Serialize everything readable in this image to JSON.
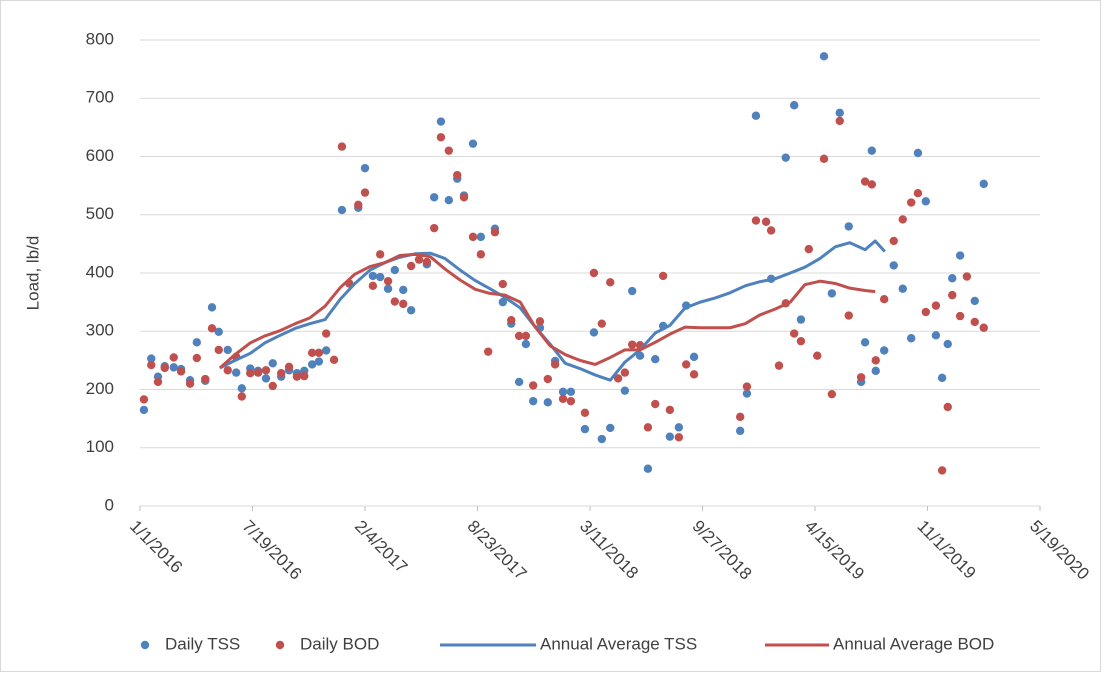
{
  "chart_data": {
    "type": "scatter",
    "y_label": "Load, lb/d",
    "ylim": [
      0,
      800
    ],
    "yticks": [
      0,
      100,
      200,
      300,
      400,
      500,
      600,
      700,
      800
    ],
    "xlim": [
      "1/1/2016",
      "5/19/2020"
    ],
    "xticks": [
      "1/1/2016",
      "7/19/2016",
      "2/4/2017",
      "8/23/2017",
      "3/11/2018",
      "9/27/2018",
      "4/15/2019",
      "11/1/2019",
      "5/19/2020"
    ],
    "grid": true,
    "legend": "bottom",
    "x": [
      "1/8/2016",
      "1/21/2016",
      "2/2/2016",
      "2/14/2016",
      "3/1/2016",
      "3/14/2016",
      "3/30/2016",
      "4/11/2016",
      "4/26/2016",
      "5/8/2016",
      "5/20/2016",
      "6/5/2016",
      "6/20/2016",
      "6/30/2016",
      "7/15/2016",
      "7/29/2016",
      "8/12/2016",
      "8/24/2016",
      "9/8/2016",
      "9/22/2016",
      "10/6/2016",
      "10/19/2016",
      "11/2/2016",
      "11/14/2016",
      "11/27/2016",
      "12/11/2016",
      "12/25/2016",
      "1/7/2017",
      "1/23/2017",
      "2/4/2017",
      "2/18/2017",
      "3/3/2017",
      "3/17/2017",
      "3/29/2017",
      "4/13/2017",
      "4/27/2017",
      "5/11/2017",
      "5/25/2017",
      "6/7/2017",
      "6/19/2017",
      "7/3/2017",
      "7/18/2017",
      "7/30/2017",
      "8/15/2017",
      "8/29/2017",
      "9/11/2017",
      "9/23/2017",
      "10/7/2017",
      "10/22/2017",
      "11/5/2017",
      "11/17/2017",
      "11/30/2017",
      "12/12/2017",
      "12/26/2017",
      "1/8/2018",
      "1/22/2018",
      "2/5/2018",
      "3/2/2018",
      "3/18/2018",
      "4/1/2018",
      "4/16/2018",
      "4/30/2018",
      "5/12/2018",
      "5/25/2018",
      "6/8/2018",
      "6/22/2018",
      "7/5/2018",
      "7/19/2018",
      "7/31/2018",
      "8/16/2018",
      "8/29/2018",
      "9/12/2018",
      "12/3/2018",
      "12/15/2018",
      "12/31/2018",
      "1/18/2019",
      "1/27/2019",
      "2/10/2019",
      "2/22/2019",
      "3/9/2019",
      "3/21/2019",
      "4/4/2019",
      "4/19/2019",
      "5/1/2019",
      "5/15/2019",
      "5/29/2019",
      "6/14/2019",
      "7/6/2019",
      "7/13/2019",
      "7/25/2019",
      "8/1/2019",
      "8/16/2019",
      "9/2/2019",
      "9/18/2019",
      "10/3/2019",
      "10/15/2019",
      "10/29/2019",
      "11/16/2019",
      "11/27/2019",
      "12/7/2019",
      "12/15/2019",
      "12/29/2019",
      "1/10/2020",
      "1/24/2020",
      "2/9/2020"
    ],
    "series": [
      {
        "name": "Daily TSS",
        "type": "scatter",
        "color": "#4f81bd",
        "values": [
          165,
          253,
          222,
          240,
          238,
          235,
          216,
          281,
          215,
          341,
          299,
          268,
          229,
          202,
          236,
          232,
          219,
          245,
          222,
          233,
          228,
          232,
          243,
          248,
          267,
          null,
          508,
          null,
          512,
          580,
          395,
          393,
          373,
          405,
          371,
          336,
          null,
          415,
          530,
          660,
          525,
          562,
          533,
          622,
          462,
          null,
          476,
          350,
          313,
          213,
          278,
          180,
          306,
          178,
          249,
          196,
          196,
          132,
          298,
          115,
          134,
          null,
          198,
          369,
          258,
          64,
          252,
          309,
          119,
          135,
          344,
          256,
          129,
          193,
          670,
          null,
          390,
          null,
          598,
          688,
          320,
          null,
          null,
          772,
          365,
          675,
          480,
          213,
          281,
          610,
          232,
          267,
          413,
          373,
          288,
          606,
          523,
          293,
          220,
          278,
          391,
          430,
          null,
          352,
          553
        ]
      },
      {
        "name": "Daily BOD",
        "type": "scatter",
        "color": "#c0504d",
        "values": [
          183,
          242,
          213,
          237,
          255,
          231,
          210,
          254,
          218,
          305,
          268,
          233,
          256,
          188,
          228,
          229,
          233,
          206,
          228,
          239,
          222,
          223,
          263,
          263,
          296,
          251,
          617,
          382,
          517,
          538,
          378,
          432,
          386,
          351,
          347,
          412,
          423,
          419,
          477,
          633,
          610,
          568,
          530,
          462,
          432,
          265,
          470,
          381,
          319,
          292,
          292,
          207,
          317,
          218,
          243,
          184,
          180,
          160,
          400,
          313,
          384,
          219,
          229,
          277,
          276,
          135,
          175,
          395,
          165,
          118,
          243,
          226,
          153,
          205,
          490,
          488,
          473,
          241,
          348,
          296,
          283,
          441,
          258,
          596,
          192,
          661,
          327,
          221,
          557,
          552,
          250,
          355,
          455,
          492,
          521,
          537,
          333,
          344,
          61,
          170,
          362,
          326,
          394,
          316,
          306
        ]
      },
      {
        "name": "Annual Average TSS",
        "type": "line",
        "color": "#4f81bd",
        "x": [
          "5/22/2016",
          "6/18/2016",
          "7/15/2016",
          "8/10/2016",
          "9/6/2016",
          "10/3/2016",
          "10/29/2016",
          "11/25/2016",
          "12/22/2016",
          "1/17/2017",
          "2/13/2017",
          "3/12/2017",
          "4/7/2017",
          "5/4/2017",
          "5/31/2017",
          "6/26/2017",
          "7/23/2017",
          "8/19/2017",
          "9/14/2017",
          "10/11/2017",
          "11/7/2017",
          "12/3/2017",
          "12/30/2017",
          "1/26/2018",
          "2/21/2018",
          "3/20/2018",
          "4/16/2018",
          "5/12/2018",
          "6/8/2018",
          "7/5/2018",
          "7/31/2018",
          "8/27/2018",
          "9/23/2018",
          "10/19/2018",
          "11/15/2018",
          "12/12/2018",
          "1/7/2019",
          "2/3/2019",
          "3/2/2019",
          "3/28/2019",
          "4/24/2019",
          "5/21/2019",
          "6/16/2019",
          "7/13/2019",
          "7/31/2019",
          "8/17/2019"
        ],
        "values": [
          237,
          250,
          262,
          280,
          293,
          305,
          313,
          320,
          355,
          382,
          405,
          418,
          427,
          433,
          434,
          425,
          405,
          387,
          373,
          358,
          340,
          308,
          278,
          245,
          236,
          225,
          216,
          247,
          268,
          297,
          310,
          340,
          350,
          357,
          366,
          378,
          385,
          390,
          400,
          410,
          425,
          445,
          452,
          440,
          455,
          437
        ]
      },
      {
        "name": "Annual Average BOD",
        "type": "line",
        "color": "#c0504d",
        "x": [
          "5/22/2016",
          "6/18/2016",
          "7/15/2016",
          "8/10/2016",
          "9/6/2016",
          "10/3/2016",
          "10/29/2016",
          "11/25/2016",
          "12/22/2016",
          "1/17/2017",
          "2/13/2017",
          "3/12/2017",
          "4/7/2017",
          "5/4/2017",
          "5/31/2017",
          "6/26/2017",
          "7/23/2017",
          "8/19/2017",
          "9/14/2017",
          "10/11/2017",
          "11/7/2017",
          "12/3/2017",
          "12/30/2017",
          "1/26/2018",
          "2/21/2018",
          "3/20/2018",
          "4/16/2018",
          "5/12/2018",
          "6/8/2018",
          "7/5/2018",
          "7/31/2018",
          "8/27/2018",
          "9/23/2018",
          "10/19/2018",
          "11/15/2018",
          "12/12/2018",
          "1/7/2019",
          "2/3/2019",
          "3/2/2019",
          "3/28/2019",
          "4/24/2019",
          "5/21/2019",
          "6/16/2019",
          "7/13/2019",
          "7/31/2019"
        ],
        "values": [
          237,
          260,
          280,
          292,
          301,
          313,
          323,
          343,
          375,
          398,
          411,
          418,
          430,
          432,
          428,
          407,
          388,
          372,
          365,
          362,
          350,
          308,
          275,
          260,
          250,
          243,
          255,
          268,
          268,
          281,
          295,
          307,
          306,
          306,
          306,
          313,
          328,
          338,
          350,
          380,
          386,
          382,
          374,
          370,
          368
        ]
      }
    ]
  }
}
